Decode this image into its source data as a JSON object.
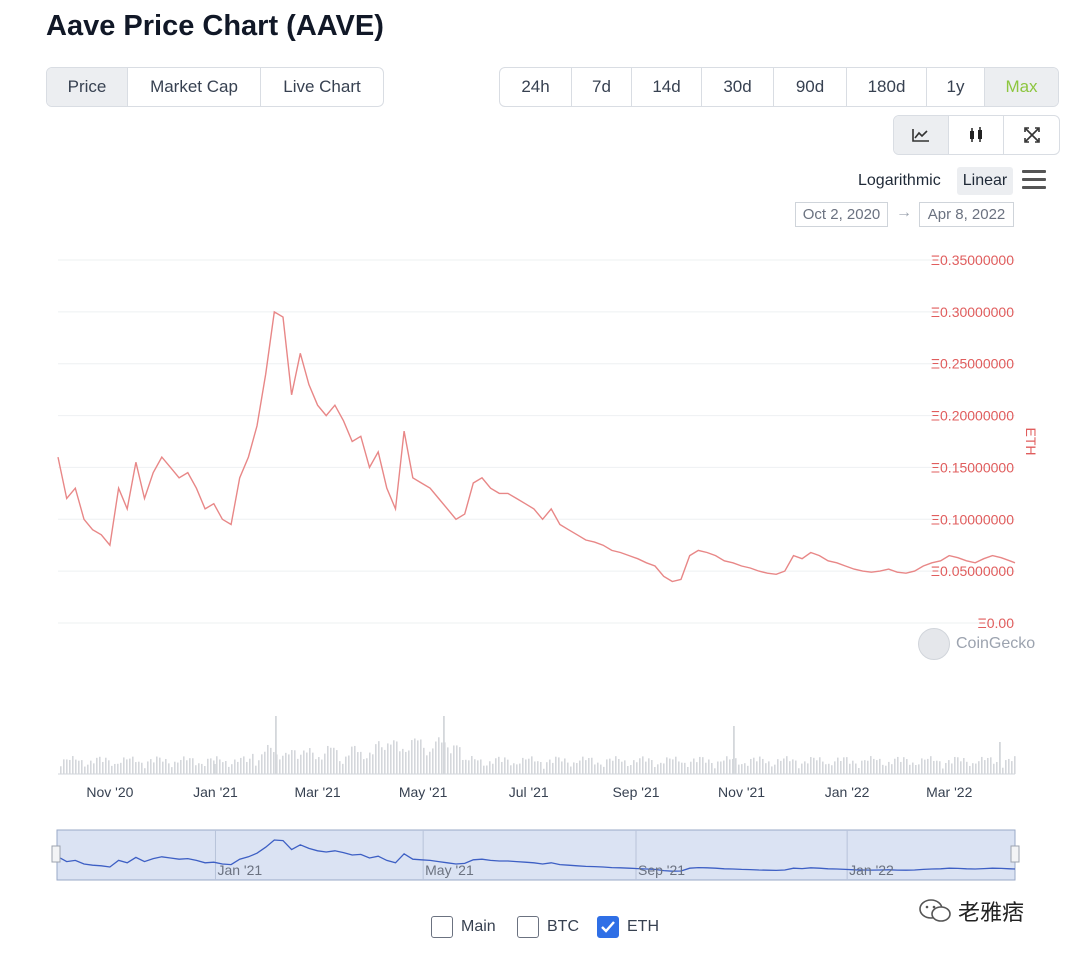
{
  "page": {
    "title": "Aave Price Chart (AAVE)"
  },
  "view_tabs": [
    {
      "label": "Price",
      "active": true
    },
    {
      "label": "Market Cap",
      "active": false
    },
    {
      "label": "Live Chart",
      "active": false
    }
  ],
  "range_tabs": [
    {
      "label": "24h"
    },
    {
      "label": "7d"
    },
    {
      "label": "14d"
    },
    {
      "label": "30d"
    },
    {
      "label": "90d"
    },
    {
      "label": "180d"
    },
    {
      "label": "1y"
    },
    {
      "label": "Max",
      "active": true
    }
  ],
  "chart_type_icons": [
    "line-chart-icon",
    "candlestick-icon",
    "fullscreen-icon"
  ],
  "scale": {
    "log_label": "Logarithmic",
    "linear_label": "Linear",
    "selected": "Linear"
  },
  "date_range": {
    "from": "Oct 2, 2020",
    "arrow": "→",
    "to": "Apr 8, 2022"
  },
  "branding": {
    "source": "CoinGecko",
    "watermark": "老雅痞"
  },
  "legend": [
    {
      "label": "Main",
      "checked": false
    },
    {
      "label": "BTC",
      "checked": false
    },
    {
      "label": "ETH",
      "checked": true
    }
  ],
  "colors": {
    "price_line": "#e88787",
    "axis_label": "#e05d5d",
    "navigator_line": "#3d5fc4",
    "navigator_fill": "#dbe3f3",
    "active_range": "#8dc63f",
    "checkbox": "#2f6fe6"
  },
  "chart_data": {
    "type": "line",
    "y_axis_title": "ETH",
    "y_ticks": [
      "Ξ0.00",
      "Ξ0.05000000",
      "Ξ0.10000000",
      "Ξ0.15000000",
      "Ξ0.20000000",
      "Ξ0.25000000",
      "Ξ0.30000000",
      "Ξ0.35000000"
    ],
    "ylim": [
      0,
      0.35
    ],
    "xlim": [
      "2020-10-02",
      "2022-04-08"
    ],
    "x_ticks": [
      {
        "label": "Nov '20",
        "date": "2020-11-01"
      },
      {
        "label": "Jan '21",
        "date": "2021-01-01"
      },
      {
        "label": "Mar '21",
        "date": "2021-03-01"
      },
      {
        "label": "May '21",
        "date": "2021-05-01"
      },
      {
        "label": "Jul '21",
        "date": "2021-07-01"
      },
      {
        "label": "Sep '21",
        "date": "2021-09-01"
      },
      {
        "label": "Nov '21",
        "date": "2021-11-01"
      },
      {
        "label": "Jan '22",
        "date": "2022-01-01"
      },
      {
        "label": "Mar '22",
        "date": "2022-03-01"
      }
    ],
    "navigator_ticks": [
      "Jan '21",
      "May '21",
      "Sep '21",
      "Jan '22"
    ],
    "series": [
      {
        "x": [
          "2020-10-02",
          "2020-10-07",
          "2020-10-12",
          "2020-10-17",
          "2020-10-22",
          "2020-10-27",
          "2020-11-01",
          "2020-11-06",
          "2020-11-11",
          "2020-11-16",
          "2020-11-21",
          "2020-11-26",
          "2020-12-01",
          "2020-12-06",
          "2020-12-11",
          "2020-12-16",
          "2020-12-21",
          "2020-12-26",
          "2020-12-31",
          "2021-01-05",
          "2021-01-10",
          "2021-01-15",
          "2021-01-20",
          "2021-01-25",
          "2021-01-30",
          "2021-02-04",
          "2021-02-09",
          "2021-02-14",
          "2021-02-19",
          "2021-02-24",
          "2021-03-01",
          "2021-03-06",
          "2021-03-11",
          "2021-03-16",
          "2021-03-21",
          "2021-03-26",
          "2021-03-31",
          "2021-04-05",
          "2021-04-10",
          "2021-04-15",
          "2021-04-20",
          "2021-04-25",
          "2021-04-30",
          "2021-05-05",
          "2021-05-10",
          "2021-05-15",
          "2021-05-20",
          "2021-05-25",
          "2021-05-30",
          "2021-06-04",
          "2021-06-09",
          "2021-06-14",
          "2021-06-19",
          "2021-06-24",
          "2021-06-29",
          "2021-07-04",
          "2021-07-09",
          "2021-07-14",
          "2021-07-19",
          "2021-07-24",
          "2021-07-29",
          "2021-08-03",
          "2021-08-08",
          "2021-08-13",
          "2021-08-18",
          "2021-08-23",
          "2021-08-28",
          "2021-09-02",
          "2021-09-07",
          "2021-09-12",
          "2021-09-17",
          "2021-09-22",
          "2021-09-27",
          "2021-10-02",
          "2021-10-07",
          "2021-10-12",
          "2021-10-17",
          "2021-10-22",
          "2021-10-27",
          "2021-11-01",
          "2021-11-06",
          "2021-11-11",
          "2021-11-16",
          "2021-11-21",
          "2021-11-26",
          "2021-12-01",
          "2021-12-06",
          "2021-12-11",
          "2021-12-16",
          "2021-12-21",
          "2021-12-26",
          "2021-12-31",
          "2022-01-05",
          "2022-01-10",
          "2022-01-15",
          "2022-01-20",
          "2022-01-25",
          "2022-01-30",
          "2022-02-04",
          "2022-02-09",
          "2022-02-14",
          "2022-02-19",
          "2022-02-24",
          "2022-03-01",
          "2022-03-06",
          "2022-03-11",
          "2022-03-16",
          "2022-03-21",
          "2022-03-26",
          "2022-03-31",
          "2022-04-05",
          "2022-04-08"
        ],
        "values": [
          0.16,
          0.12,
          0.13,
          0.1,
          0.09,
          0.085,
          0.075,
          0.13,
          0.11,
          0.155,
          0.12,
          0.145,
          0.16,
          0.15,
          0.14,
          0.145,
          0.13,
          0.11,
          0.115,
          0.1,
          0.095,
          0.14,
          0.16,
          0.19,
          0.24,
          0.3,
          0.295,
          0.22,
          0.26,
          0.23,
          0.21,
          0.2,
          0.21,
          0.195,
          0.175,
          0.18,
          0.15,
          0.165,
          0.13,
          0.11,
          0.185,
          0.14,
          0.135,
          0.13,
          0.12,
          0.11,
          0.1,
          0.105,
          0.135,
          0.14,
          0.13,
          0.125,
          0.125,
          0.12,
          0.115,
          0.11,
          0.1,
          0.11,
          0.095,
          0.09,
          0.085,
          0.08,
          0.078,
          0.075,
          0.07,
          0.068,
          0.065,
          0.062,
          0.058,
          0.055,
          0.045,
          0.04,
          0.042,
          0.065,
          0.07,
          0.068,
          0.065,
          0.06,
          0.058,
          0.055,
          0.053,
          0.05,
          0.048,
          0.047,
          0.05,
          0.065,
          0.062,
          0.068,
          0.065,
          0.06,
          0.058,
          0.055,
          0.052,
          0.05,
          0.049,
          0.05,
          0.052,
          0.049,
          0.048,
          0.05,
          0.055,
          0.058,
          0.06,
          0.065,
          0.063,
          0.06,
          0.058,
          0.062,
          0.065,
          0.063,
          0.06,
          0.058
        ]
      }
    ]
  }
}
